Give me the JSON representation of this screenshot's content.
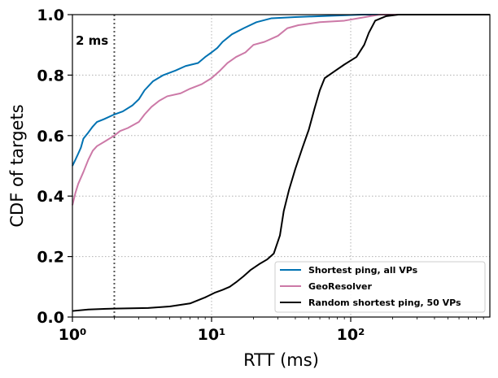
{
  "chart_data": {
    "type": "line",
    "xlabel": "RTT (ms)",
    "ylabel": "CDF of targets",
    "xscale": "log",
    "xlim": [
      1,
      1000
    ],
    "ylim": [
      0,
      1
    ],
    "x_ticks": [
      1,
      10,
      100
    ],
    "x_tick_labels": [
      "10⁰",
      "10¹",
      "10²"
    ],
    "y_ticks": [
      0,
      0.2,
      0.4,
      0.6,
      0.8,
      1.0
    ],
    "y_tick_labels": [
      "0.0",
      "0.2",
      "0.4",
      "0.6",
      "0.8",
      "1.0"
    ],
    "grid": true,
    "legend_position": "lower-right",
    "annotations": [
      {
        "text": "2 ms",
        "x": 2,
        "line_style": "dotted"
      }
    ],
    "series": [
      {
        "name": "Shortest ping, all VPs",
        "color": "#0072b2",
        "points": [
          [
            1.0,
            0.5
          ],
          [
            1.05,
            0.52
          ],
          [
            1.1,
            0.54
          ],
          [
            1.15,
            0.56
          ],
          [
            1.2,
            0.59
          ],
          [
            1.3,
            0.61
          ],
          [
            1.4,
            0.63
          ],
          [
            1.5,
            0.645
          ],
          [
            1.7,
            0.655
          ],
          [
            2.0,
            0.67
          ],
          [
            2.3,
            0.68
          ],
          [
            2.7,
            0.7
          ],
          [
            3.0,
            0.72
          ],
          [
            3.3,
            0.75
          ],
          [
            3.8,
            0.78
          ],
          [
            4.5,
            0.8
          ],
          [
            5.5,
            0.815
          ],
          [
            6.5,
            0.83
          ],
          [
            8.0,
            0.84
          ],
          [
            9.0,
            0.86
          ],
          [
            10.0,
            0.875
          ],
          [
            11.0,
            0.89
          ],
          [
            12.0,
            0.91
          ],
          [
            14.0,
            0.935
          ],
          [
            17.0,
            0.955
          ],
          [
            21.0,
            0.975
          ],
          [
            27.0,
            0.988
          ],
          [
            40.0,
            0.992
          ],
          [
            70.0,
            0.996
          ],
          [
            120.0,
            1.0
          ],
          [
            1000.0,
            1.0
          ]
        ]
      },
      {
        "name": "GeoResolver",
        "color": "#cc79a7",
        "points": [
          [
            1.0,
            0.37
          ],
          [
            1.05,
            0.41
          ],
          [
            1.1,
            0.44
          ],
          [
            1.2,
            0.48
          ],
          [
            1.3,
            0.52
          ],
          [
            1.4,
            0.55
          ],
          [
            1.5,
            0.565
          ],
          [
            1.7,
            0.58
          ],
          [
            2.0,
            0.6
          ],
          [
            2.2,
            0.615
          ],
          [
            2.5,
            0.625
          ],
          [
            3.0,
            0.645
          ],
          [
            3.3,
            0.67
          ],
          [
            3.7,
            0.695
          ],
          [
            4.2,
            0.715
          ],
          [
            4.8,
            0.73
          ],
          [
            6.0,
            0.74
          ],
          [
            7.0,
            0.755
          ],
          [
            8.5,
            0.77
          ],
          [
            10.0,
            0.79
          ],
          [
            11.5,
            0.815
          ],
          [
            13.0,
            0.84
          ],
          [
            15.0,
            0.86
          ],
          [
            17.5,
            0.875
          ],
          [
            20.0,
            0.9
          ],
          [
            24.0,
            0.91
          ],
          [
            30.0,
            0.93
          ],
          [
            35.0,
            0.955
          ],
          [
            42.0,
            0.965
          ],
          [
            60.0,
            0.975
          ],
          [
            90.0,
            0.98
          ],
          [
            120.0,
            0.99
          ],
          [
            160.0,
            1.0
          ],
          [
            1000.0,
            1.0
          ]
        ]
      },
      {
        "name": "Random shortest ping, 50 VPs",
        "color": "#000000",
        "points": [
          [
            1.0,
            0.02
          ],
          [
            1.3,
            0.025
          ],
          [
            2.0,
            0.028
          ],
          [
            3.5,
            0.03
          ],
          [
            5.0,
            0.035
          ],
          [
            7.0,
            0.045
          ],
          [
            9.0,
            0.065
          ],
          [
            10.5,
            0.08
          ],
          [
            12.0,
            0.09
          ],
          [
            13.5,
            0.1
          ],
          [
            15.0,
            0.115
          ],
          [
            17.0,
            0.135
          ],
          [
            19.0,
            0.155
          ],
          [
            22.0,
            0.175
          ],
          [
            25.0,
            0.19
          ],
          [
            28.0,
            0.21
          ],
          [
            31.0,
            0.27
          ],
          [
            33.0,
            0.35
          ],
          [
            36.0,
            0.42
          ],
          [
            40.0,
            0.49
          ],
          [
            45.0,
            0.56
          ],
          [
            50.0,
            0.62
          ],
          [
            55.0,
            0.69
          ],
          [
            60.0,
            0.75
          ],
          [
            65.0,
            0.79
          ],
          [
            75.0,
            0.81
          ],
          [
            90.0,
            0.835
          ],
          [
            110.0,
            0.86
          ],
          [
            125.0,
            0.9
          ],
          [
            135.0,
            0.94
          ],
          [
            150.0,
            0.98
          ],
          [
            180.0,
            0.995
          ],
          [
            220.0,
            1.0
          ],
          [
            1000.0,
            1.0
          ]
        ]
      }
    ]
  }
}
